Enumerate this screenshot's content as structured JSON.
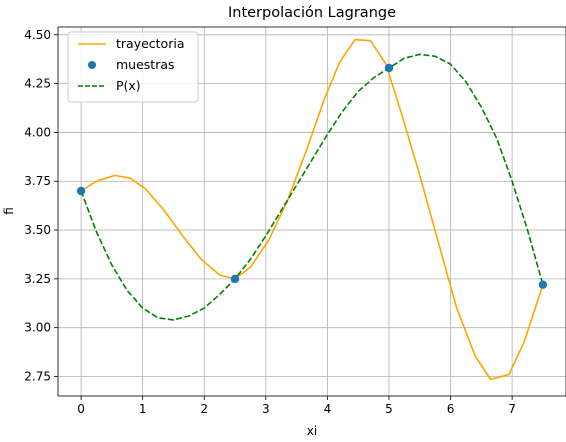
{
  "chart_data": {
    "type": "line",
    "title": "Interpolación Lagrange",
    "xlabel": "xi",
    "ylabel": "fi",
    "xlim": [
      -0.375,
      7.875
    ],
    "ylim": [
      2.65,
      4.54
    ],
    "xticks": [
      "0",
      "1",
      "2",
      "3",
      "4",
      "5",
      "6",
      "7"
    ],
    "yticks": [
      "2.75",
      "3.00",
      "3.25",
      "3.50",
      "3.75",
      "4.00",
      "4.25",
      "4.50"
    ],
    "grid": true,
    "legend_position": "top-left",
    "series": [
      {
        "name": "trayectoria",
        "style": "line",
        "color": "#ffa500",
        "x": [
          0,
          0.25,
          0.55,
          0.8,
          1.05,
          1.35,
          1.65,
          1.95,
          2.25,
          2.5,
          2.75,
          3.05,
          3.35,
          3.65,
          3.95,
          4.2,
          4.45,
          4.7,
          4.95,
          5.2,
          5.5,
          5.8,
          6.1,
          6.4,
          6.65,
          6.95,
          7.2,
          7.5
        ],
        "y": [
          3.7,
          3.75,
          3.78,
          3.765,
          3.71,
          3.6,
          3.47,
          3.35,
          3.27,
          3.25,
          3.31,
          3.45,
          3.65,
          3.9,
          4.17,
          4.36,
          4.475,
          4.47,
          4.35,
          4.1,
          3.78,
          3.44,
          3.1,
          2.855,
          2.735,
          2.76,
          2.93,
          3.22
        ]
      },
      {
        "name": "muestras",
        "style": "markers",
        "color": "#1f77b4",
        "x": [
          0,
          2.5,
          5.0,
          7.5
        ],
        "y": [
          3.7,
          3.25,
          4.33,
          3.22
        ]
      },
      {
        "name": "P(x)",
        "style": "dashed",
        "color": "#008000",
        "x": [
          0,
          0.25,
          0.5,
          0.75,
          1.0,
          1.25,
          1.5,
          1.75,
          2.0,
          2.25,
          2.5,
          2.75,
          3.0,
          3.25,
          3.5,
          3.75,
          4.0,
          4.25,
          4.5,
          4.75,
          5.0,
          5.25,
          5.5,
          5.75,
          6.0,
          6.25,
          6.5,
          6.75,
          7.0,
          7.25,
          7.5
        ],
        "y": [
          3.7,
          3.49,
          3.32,
          3.19,
          3.1,
          3.05,
          3.04,
          3.06,
          3.1,
          3.17,
          3.25,
          3.35,
          3.47,
          3.6,
          3.73,
          3.86,
          3.99,
          4.11,
          4.21,
          4.28,
          4.33,
          4.38,
          4.4,
          4.39,
          4.35,
          4.26,
          4.13,
          3.97,
          3.75,
          3.5,
          3.22
        ]
      }
    ]
  }
}
